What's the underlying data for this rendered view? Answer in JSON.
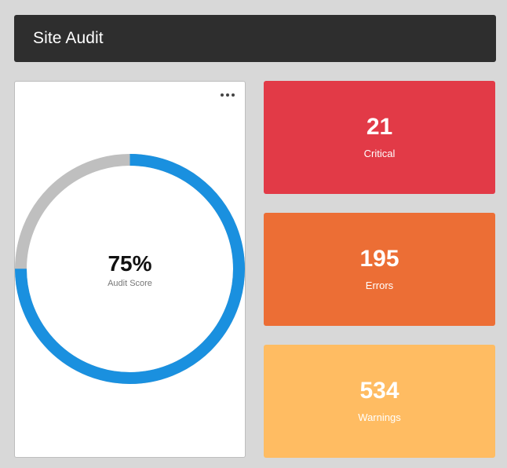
{
  "header": {
    "title": "Site Audit"
  },
  "score": {
    "value_text": "75%",
    "percent": 75,
    "label": "Audit Score",
    "colors": {
      "progress": "#1a90df",
      "track": "#bfbfbf"
    }
  },
  "menu": {
    "icon": "more-horizontal-icon"
  },
  "stats": [
    {
      "value": "21",
      "label": "Critical",
      "color": "#e23a47"
    },
    {
      "value": "195",
      "label": "Errors",
      "color": "#ec6e35"
    },
    {
      "value": "534",
      "label": "Warnings",
      "color": "#ffbc62"
    }
  ]
}
